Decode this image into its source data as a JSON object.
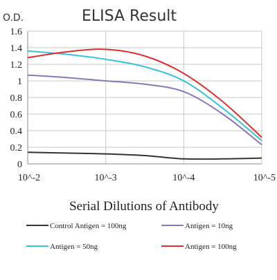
{
  "chart_data": {
    "type": "line",
    "title": "ELISA Result",
    "ylabel": "O.D.",
    "xlabel": "Serial Dilutions of Antibody",
    "x_tick_labels": [
      "10^-2",
      "10^-3",
      "10^-4",
      "10^-5"
    ],
    "x_scale": "log",
    "x": [
      -2,
      -2.5,
      -3,
      -3.5,
      -4,
      -4.5,
      -5
    ],
    "ylim": [
      0,
      1.6
    ],
    "y_ticks": [
      "0",
      "0.2",
      "0.4",
      "0.6",
      "0.8",
      "1",
      "1.2",
      "1.4",
      "1.6"
    ],
    "grid": true,
    "legend_position": "bottom",
    "series": [
      {
        "name": "Control Antigen = 100ng",
        "color": "#333333",
        "values": [
          0.14,
          0.13,
          0.12,
          0.1,
          0.06,
          0.06,
          0.07
        ]
      },
      {
        "name": "Antigen = 10ng",
        "color": "#8b74c0",
        "values": [
          1.07,
          1.04,
          1.0,
          0.96,
          0.87,
          0.6,
          0.23
        ]
      },
      {
        "name": "Antigen = 50ng",
        "color": "#33c3dd",
        "values": [
          1.36,
          1.32,
          1.26,
          1.17,
          1.0,
          0.67,
          0.28
        ]
      },
      {
        "name": "Antigen = 100ng",
        "color": "#dd2e2e",
        "values": [
          1.28,
          1.35,
          1.38,
          1.3,
          1.09,
          0.75,
          0.32
        ]
      }
    ],
    "legend_labels": [
      "Control Antigen = 100ng",
      "Antigen = 10ng",
      "Antigen = 50ng",
      "Antigen = 100ng"
    ]
  }
}
